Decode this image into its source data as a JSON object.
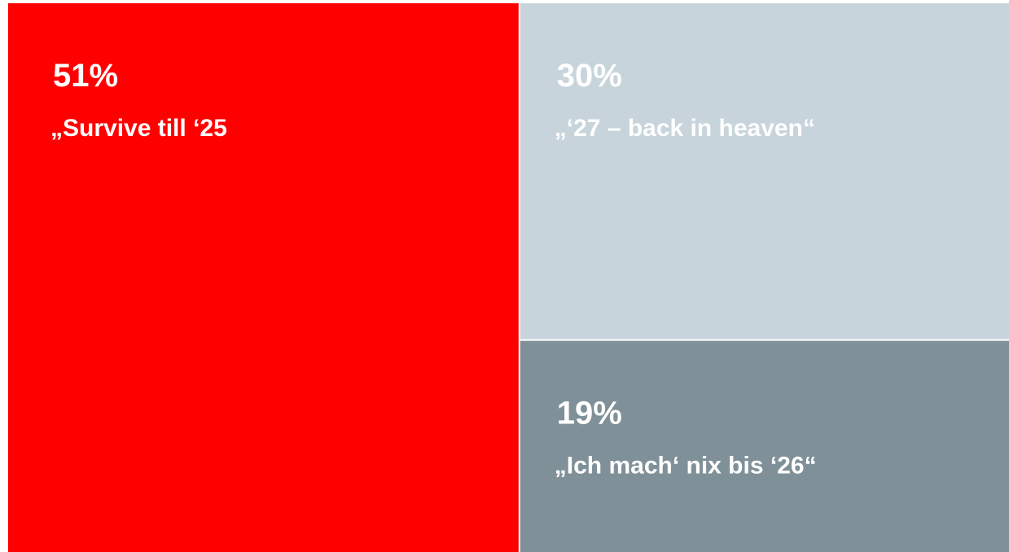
{
  "chart_data": {
    "type": "treemap",
    "categories": [
      "„Survive till ‘25",
      "„‘27 – back in heaven“",
      "„Ich mach‘ nix bis ‘26“"
    ],
    "values": [
      51,
      30,
      19
    ],
    "value_labels": [
      "51%",
      "30%",
      "19%"
    ],
    "colors": [
      "#ff0000",
      "#c8d4db",
      "#7f9098"
    ]
  }
}
